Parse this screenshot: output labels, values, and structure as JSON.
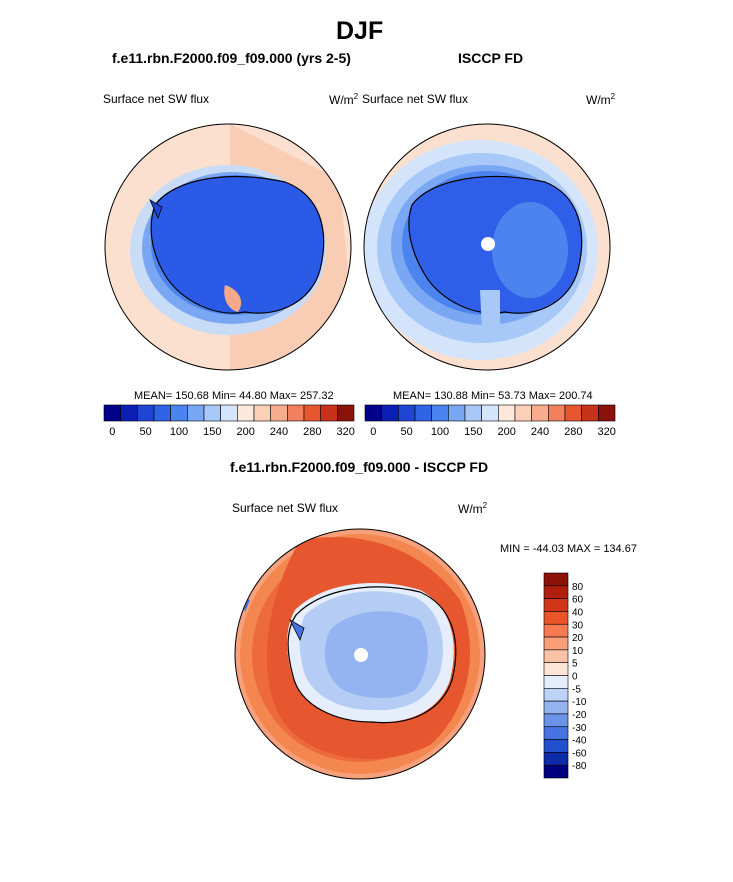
{
  "page": {
    "title": "DJF"
  },
  "panels": [
    {
      "header": "f.e11.rbn.F2000.f09_f09.000 (yrs 2-5)",
      "variable": "Surface net SW flux",
      "units_base": "W/m",
      "units_exp": "2",
      "stats": "MEAN= 150.68  Min=  44.80  Max= 257.32"
    },
    {
      "header": "ISCCP FD",
      "variable": "Surface net SW flux",
      "units_base": "W/m",
      "units_exp": "2",
      "stats": "MEAN= 130.88  Min=  53.73  Max= 200.74"
    },
    {
      "header": "f.e11.rbn.F2000.f09_f09.000 - ISCCP FD",
      "variable": "Surface net SW flux",
      "units_base": "W/m",
      "units_exp": "2",
      "stats": "MIN = -44.03 MAX = 134.67"
    }
  ],
  "chart_data": [
    {
      "type": "heatmap",
      "projection": "south-polar-stereographic",
      "title": "f.e11.rbn.F2000.f09_f09.000 (yrs 2-5)",
      "variable": "Surface net SW flux",
      "units": "W/m2",
      "mean": 150.68,
      "min": 44.8,
      "max": 257.32,
      "colorbar_levels": [
        0,
        25,
        50,
        75,
        100,
        125,
        150,
        175,
        200,
        220,
        240,
        260,
        280,
        300,
        320
      ],
      "colorbar_tick_labels": [
        "0",
        "50",
        "100",
        "150",
        "200",
        "240",
        "280",
        "320"
      ],
      "colorbar_colors": [
        "#00008a",
        "#0b1fb4",
        "#1f45d4",
        "#2f64e6",
        "#4c84ef",
        "#7aa7f3",
        "#a8c8f8",
        "#d4e5fb",
        "#fde9dc",
        "#fbcfb8",
        "#f7ac8d",
        "#f27f5d",
        "#e6562f",
        "#c8321a",
        "#8b1208"
      ]
    },
    {
      "type": "heatmap",
      "projection": "south-polar-stereographic",
      "title": "ISCCP FD",
      "variable": "Surface net SW flux",
      "units": "W/m2",
      "mean": 130.88,
      "min": 53.73,
      "max": 200.74,
      "colorbar_levels": [
        0,
        25,
        50,
        75,
        100,
        125,
        150,
        175,
        200,
        220,
        240,
        260,
        280,
        300,
        320
      ],
      "colorbar_tick_labels": [
        "0",
        "50",
        "100",
        "150",
        "200",
        "240",
        "280",
        "320"
      ],
      "colorbar_colors": [
        "#00008a",
        "#0b1fb4",
        "#1f45d4",
        "#2f64e6",
        "#4c84ef",
        "#7aa7f3",
        "#a8c8f8",
        "#d4e5fb",
        "#fde9dc",
        "#fbcfb8",
        "#f7ac8d",
        "#f27f5d",
        "#e6562f",
        "#c8321a",
        "#8b1208"
      ]
    },
    {
      "type": "heatmap",
      "projection": "south-polar-stereographic",
      "title": "f.e11.rbn.F2000.f09_f09.000 - ISCCP FD",
      "variable": "Surface net SW flux",
      "units": "W/m2",
      "min": -44.03,
      "max": 134.67,
      "colorbar_tick_labels": [
        "80",
        "60",
        "40",
        "30",
        "20",
        "10",
        "5",
        "0",
        "-5",
        "-10",
        "-20",
        "-30",
        "-40",
        "-60",
        "-80"
      ],
      "colorbar_colors": [
        "#8b1208",
        "#b01f0e",
        "#d1361b",
        "#e95428",
        "#f57a4f",
        "#f89f78",
        "#fbc3a6",
        "#fde5d6",
        "#e6eefb",
        "#bcd2f6",
        "#93b4f0",
        "#6c93ea",
        "#4672e2",
        "#2350cf",
        "#0d2aa8",
        "#000080"
      ]
    }
  ],
  "colors": {
    "land_model": "#2b5be6",
    "land_obs": "#2f5fe8",
    "ocean_warm": "#fbd9c6",
    "ocean_model_ring": "#5c8fed",
    "ice_edge_light": "#c9dcf7",
    "diff_ocean": "#ec6a3c",
    "diff_ice": "#b5cdf4"
  }
}
